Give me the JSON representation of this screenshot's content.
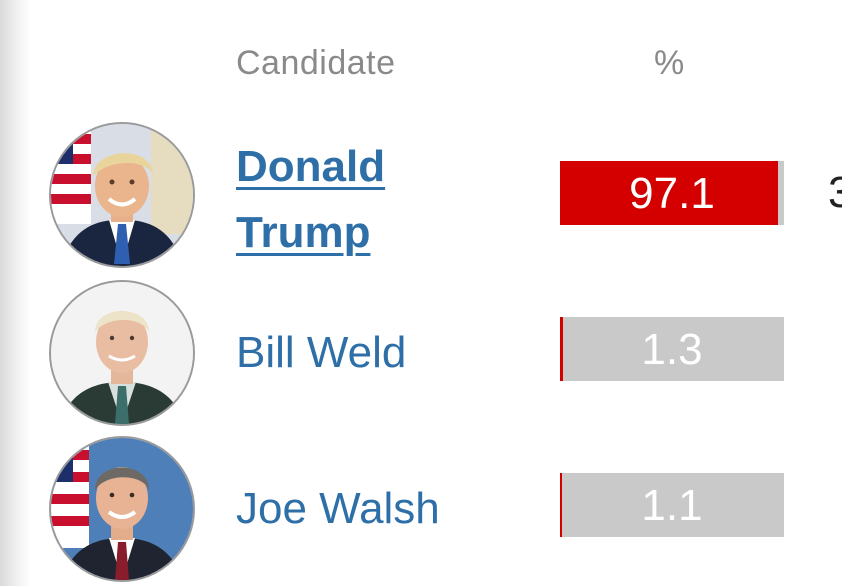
{
  "table": {
    "header_candidate": "Candidate",
    "header_percent": "%"
  },
  "colors": {
    "winner_fill": "#d40000",
    "bar_background": "#c9c9c9",
    "name_link": "#2f6fa8",
    "header_text": "#8a8a8a"
  },
  "candidates": [
    {
      "name_line1": "Donald",
      "name_line2": "Trump",
      "percent": 97.1,
      "percent_label": "97.1",
      "winner": true,
      "votes_peek": "3",
      "avatar_icon": "donald-trump-avatar"
    },
    {
      "name": "Bill Weld",
      "percent": 1.3,
      "percent_label": "1.3",
      "winner": false,
      "avatar_icon": "bill-weld-avatar"
    },
    {
      "name": "Joe Walsh",
      "percent": 1.1,
      "percent_label": "1.1",
      "winner": false,
      "avatar_icon": "joe-walsh-avatar"
    }
  ]
}
